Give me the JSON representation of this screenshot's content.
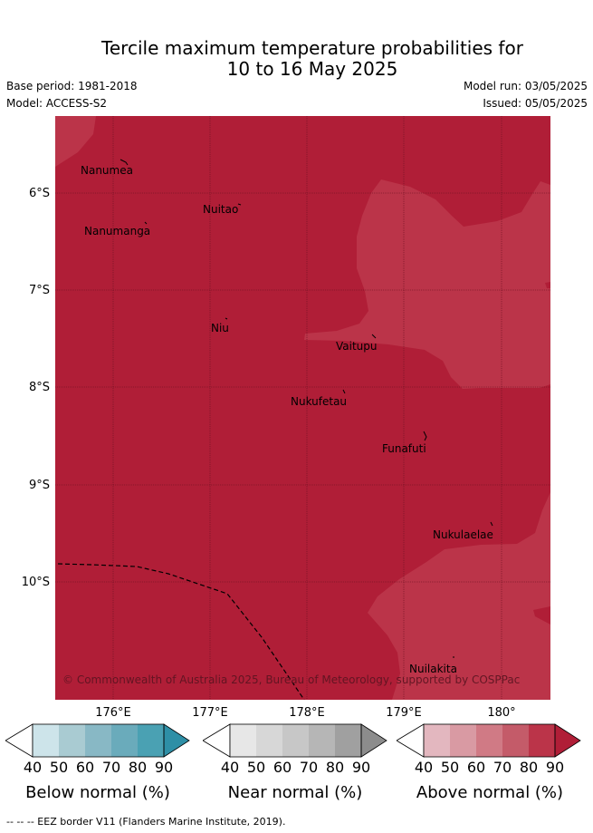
{
  "title_line1": "Tercile maximum temperature probabilities for",
  "title_line2": "10 to 16 May 2025",
  "base_period": "Base period: 1981-2018",
  "model": "Model: ACCESS-S2",
  "model_run": "Model run: 03/05/2025",
  "issued": "Issued: 05/05/2025",
  "lat_labels": [
    "6°S",
    "7°S",
    "8°S",
    "9°S",
    "10°S"
  ],
  "lon_labels": [
    "176°E",
    "177°E",
    "178°E",
    "179°E",
    "180°"
  ],
  "places": [
    "Nanumea",
    "Nuitao",
    "Nanumanga",
    "Niu",
    "Vaitupu",
    "Nukufetau",
    "Funafuti",
    "Nukulaelae",
    "Nuilakita"
  ],
  "copyright": "© Commonwealth of Australia 2025, Bureau of Meteorology, supported by COSPPac",
  "colorbars": [
    {
      "label": "Below normal (%)",
      "ticks": [
        "40",
        "50",
        "60",
        "70",
        "80",
        "90"
      ],
      "colors": [
        "#ffffff",
        "#cde4ea",
        "#a9cbd2",
        "#88b8c5",
        "#6aabbb",
        "#4aa1b3",
        "#2e8fa6"
      ]
    },
    {
      "label": "Near normal (%)",
      "ticks": [
        "40",
        "50",
        "60",
        "70",
        "80",
        "90"
      ],
      "colors": [
        "#ffffff",
        "#e7e7e7",
        "#d7d7d7",
        "#c7c7c7",
        "#b6b6b6",
        "#a0a0a0",
        "#8c8c8c"
      ]
    },
    {
      "label": "Above normal (%)",
      "ticks": [
        "40",
        "50",
        "60",
        "70",
        "80",
        "90"
      ],
      "colors": [
        "#ffffff",
        "#e3b7bf",
        "#d99aa3",
        "#d07a85",
        "#c45b69",
        "#bb3449",
        "#b01e37"
      ]
    }
  ],
  "footnote": "--  --  -- EEZ border V11 (Flanders Marine Institute, 2019)."
}
